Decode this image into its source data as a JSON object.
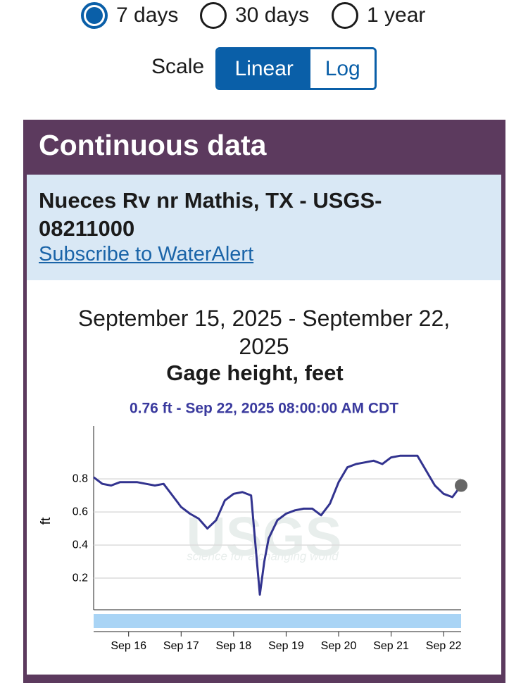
{
  "period_options": [
    {
      "label": "7 days",
      "selected": true
    },
    {
      "label": "30 days",
      "selected": false
    },
    {
      "label": "1 year",
      "selected": false
    }
  ],
  "scale": {
    "label": "Scale",
    "options": [
      {
        "label": "Linear",
        "selected": true
      },
      {
        "label": "Log",
        "selected": false
      }
    ]
  },
  "card": {
    "title": "Continuous data",
    "site_name": "Nueces Rv nr Mathis, TX - USGS-08211000",
    "link": "Subscribe to WaterAlert"
  },
  "chart_data": {
    "type": "line",
    "title": "September 15, 2025 - September 22, 2025",
    "subtitle": "Gage height, feet",
    "tooltip": "0.76 ft - Sep 22, 2025 08:00:00 AM CDT",
    "ylabel": "ft",
    "watermark": {
      "logo": "USGS",
      "tagline": "science for a changing world"
    },
    "color": "#32338f",
    "log_scale": false,
    "grid": true,
    "x": [
      "2025-09-15T08:00",
      "2025-09-15T12:00",
      "2025-09-15T16:00",
      "2025-09-15T20:00",
      "2025-09-16T00:00",
      "2025-09-16T04:00",
      "2025-09-16T08:00",
      "2025-09-16T12:00",
      "2025-09-16T16:00",
      "2025-09-16T20:00",
      "2025-09-17T00:00",
      "2025-09-17T04:00",
      "2025-09-17T08:00",
      "2025-09-17T12:00",
      "2025-09-17T16:00",
      "2025-09-17T20:00",
      "2025-09-18T00:00",
      "2025-09-18T04:00",
      "2025-09-18T08:00",
      "2025-09-18T10:00",
      "2025-09-18T12:00",
      "2025-09-18T14:00",
      "2025-09-18T16:00",
      "2025-09-18T20:00",
      "2025-09-19T00:00",
      "2025-09-19T04:00",
      "2025-09-19T08:00",
      "2025-09-19T12:00",
      "2025-09-19T16:00",
      "2025-09-19T20:00",
      "2025-09-20T00:00",
      "2025-09-20T04:00",
      "2025-09-20T08:00",
      "2025-09-20T12:00",
      "2025-09-20T16:00",
      "2025-09-20T20:00",
      "2025-09-21T00:00",
      "2025-09-21T04:00",
      "2025-09-21T08:00",
      "2025-09-21T12:00",
      "2025-09-21T16:00",
      "2025-09-21T20:00",
      "2025-09-22T00:00",
      "2025-09-22T04:00",
      "2025-09-22T08:00"
    ],
    "values": [
      0.81,
      0.77,
      0.76,
      0.78,
      0.78,
      0.78,
      0.77,
      0.76,
      0.77,
      0.7,
      0.63,
      0.59,
      0.56,
      0.5,
      0.55,
      0.67,
      0.71,
      0.72,
      0.7,
      0.4,
      0.1,
      0.3,
      0.44,
      0.55,
      0.59,
      0.61,
      0.62,
      0.62,
      0.58,
      0.65,
      0.78,
      0.87,
      0.89,
      0.9,
      0.91,
      0.89,
      0.93,
      0.94,
      0.94,
      0.94,
      0.85,
      0.76,
      0.71,
      0.69,
      0.76
    ],
    "xlim": [
      "2025-09-15T08:00",
      "2025-09-22T08:00"
    ],
    "xticks": [
      {
        "value": "2025-09-16T00:00",
        "label": "Sep 16"
      },
      {
        "value": "2025-09-17T00:00",
        "label": "Sep 17"
      },
      {
        "value": "2025-09-18T00:00",
        "label": "Sep 18"
      },
      {
        "value": "2025-09-19T00:00",
        "label": "Sep 19"
      },
      {
        "value": "2025-09-20T00:00",
        "label": "Sep 20"
      },
      {
        "value": "2025-09-21T00:00",
        "label": "Sep 21"
      },
      {
        "value": "2025-09-22T00:00",
        "label": "Sep 22"
      }
    ],
    "ylim": [
      0,
      1.12
    ],
    "yticks": [
      0.2,
      0.4,
      0.6,
      0.8
    ]
  }
}
